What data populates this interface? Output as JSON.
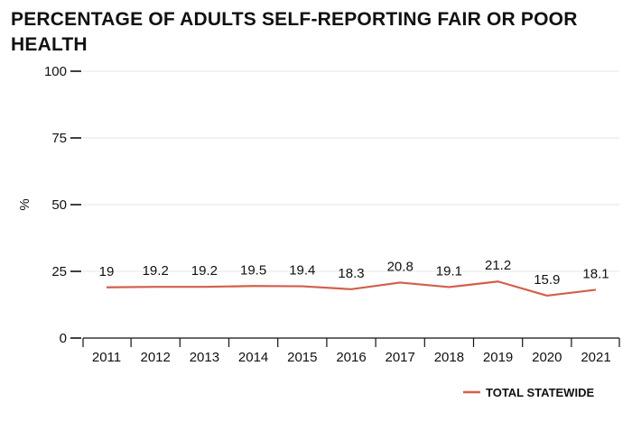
{
  "chart_data": {
    "type": "line",
    "title": "PERCENTAGE OF ADULTS SELF-REPORTING FAIR OR POOR HEALTH",
    "ylabel": "%",
    "xlabel": "",
    "ylim": [
      0,
      100
    ],
    "yticks": [
      "0",
      "25",
      "50",
      "75",
      "100"
    ],
    "categories": [
      "2011",
      "2012",
      "2013",
      "2014",
      "2015",
      "2016",
      "2017",
      "2018",
      "2019",
      "2020",
      "2021"
    ],
    "series": [
      {
        "name": "TOTAL STATEWIDE",
        "values": [
          19,
          19.2,
          19.2,
          19.5,
          19.4,
          18.3,
          20.8,
          19.1,
          21.2,
          15.9,
          18.1
        ],
        "labels": [
          "19",
          "19.2",
          "19.2",
          "19.5",
          "19.4",
          "18.3",
          "20.8",
          "19.1",
          "21.2",
          "15.9",
          "18.1"
        ],
        "color": "#d35f4a"
      }
    ],
    "grid": true,
    "legend_position": "bottom-right"
  }
}
